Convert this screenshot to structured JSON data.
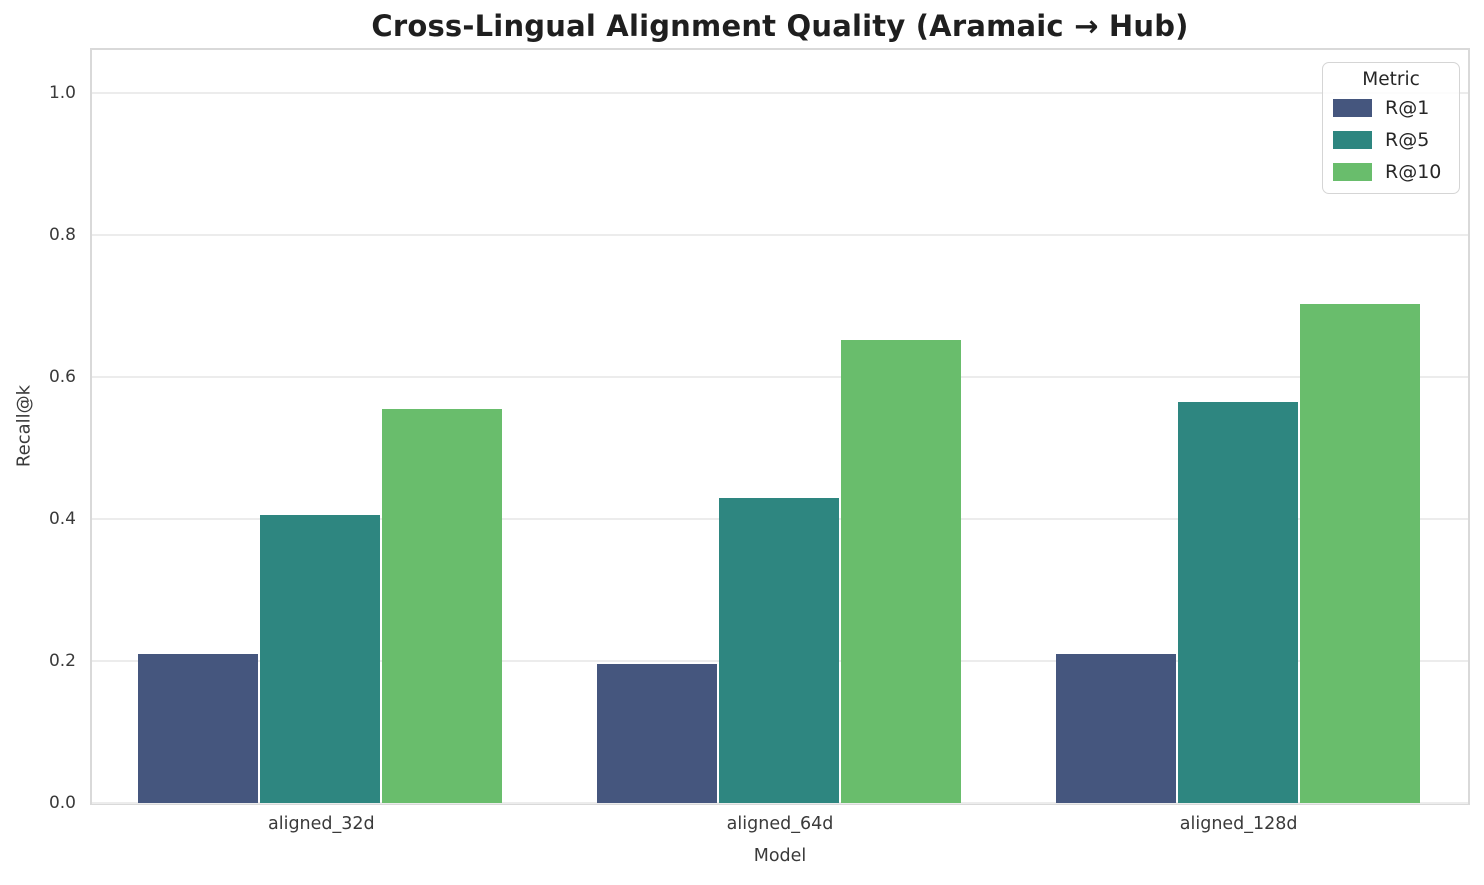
{
  "chart_data": {
    "type": "bar",
    "title": "Cross-Lingual Alignment Quality (Aramaic → Hub)",
    "xlabel": "Model",
    "ylabel": "Recall@k",
    "categories": [
      "aligned_32d",
      "aligned_64d",
      "aligned_128d"
    ],
    "series": [
      {
        "name": "R@1",
        "color": "#45567E",
        "values": [
          0.21,
          0.195,
          0.21
        ]
      },
      {
        "name": "R@5",
        "color": "#2E8680",
        "values": [
          0.405,
          0.43,
          0.565
        ]
      },
      {
        "name": "R@10",
        "color": "#69BD6C",
        "values": [
          0.555,
          0.652,
          0.703
        ]
      }
    ],
    "ylim": [
      0,
      1.06
    ],
    "yticks": [
      "0.0",
      "0.2",
      "0.4",
      "0.6",
      "0.8",
      "1.0"
    ],
    "grid": true,
    "legend": {
      "title": "Metric",
      "position": "upper-right"
    }
  },
  "style": {
    "background": "#ffffff",
    "grid_color": "#ececec",
    "spine_color": "#d9d9d9",
    "title_color": "#1f1f1f",
    "tick_color": "#3a3a3a",
    "legend_text_color": "#262626"
  }
}
